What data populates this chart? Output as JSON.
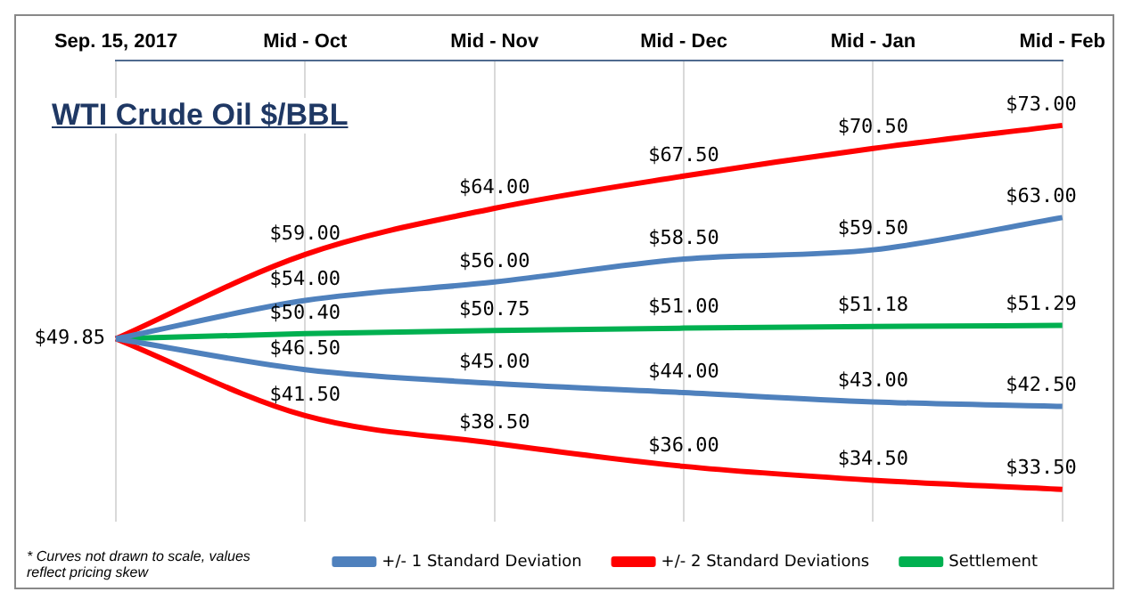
{
  "chart_data": {
    "type": "line",
    "title": "WTI Crude Oil $/BBL",
    "annotations": [
      "* Curves not drawn to scale, values reflect pricing skew"
    ],
    "categories": [
      "Sep. 15, 2017",
      "Mid - Oct",
      "Mid - Nov",
      "Mid - Dec",
      "Mid - Jan",
      "Mid - Feb"
    ],
    "series": [
      {
        "name": "+/- 1 Standard Deviation",
        "color": "#4f81bd",
        "values": [
          49.85,
          54.0,
          56.0,
          58.5,
          59.5,
          63.0
        ],
        "value_labels": [
          null,
          "$54.00",
          "$56.00",
          "$58.50",
          "$59.50",
          "$63.00"
        ]
      },
      {
        "color": "#4f81bd",
        "values": [
          49.85,
          46.5,
          45.0,
          44.0,
          43.0,
          42.5
        ],
        "value_labels": [
          null,
          "$46.50",
          "$45.00",
          "$44.00",
          "$43.00",
          "$42.50"
        ]
      },
      {
        "name": "+/- 2 Standard Deviations",
        "color": "#ff0000",
        "values": [
          49.85,
          59.0,
          64.0,
          67.5,
          70.5,
          73.0
        ],
        "value_labels": [
          null,
          "$59.00",
          "$64.00",
          "$67.50",
          "$70.50",
          "$73.00"
        ]
      },
      {
        "color": "#ff0000",
        "values": [
          49.85,
          41.5,
          38.5,
          36.0,
          34.5,
          33.5
        ],
        "value_labels": [
          null,
          "$41.50",
          "$38.50",
          "$36.00",
          "$34.50",
          "$33.50"
        ]
      },
      {
        "name": "Settlement",
        "color": "#00b050",
        "values": [
          49.85,
          50.4,
          50.75,
          51.0,
          51.18,
          51.29
        ],
        "value_labels": [
          "$49.85",
          "$50.40",
          "$50.75",
          "$51.00",
          "$51.18",
          "$51.29"
        ]
      }
    ],
    "grid": "x",
    "tick_labels": "x",
    "legend": "bottom",
    "marker": "none",
    "line_style": "solid"
  }
}
